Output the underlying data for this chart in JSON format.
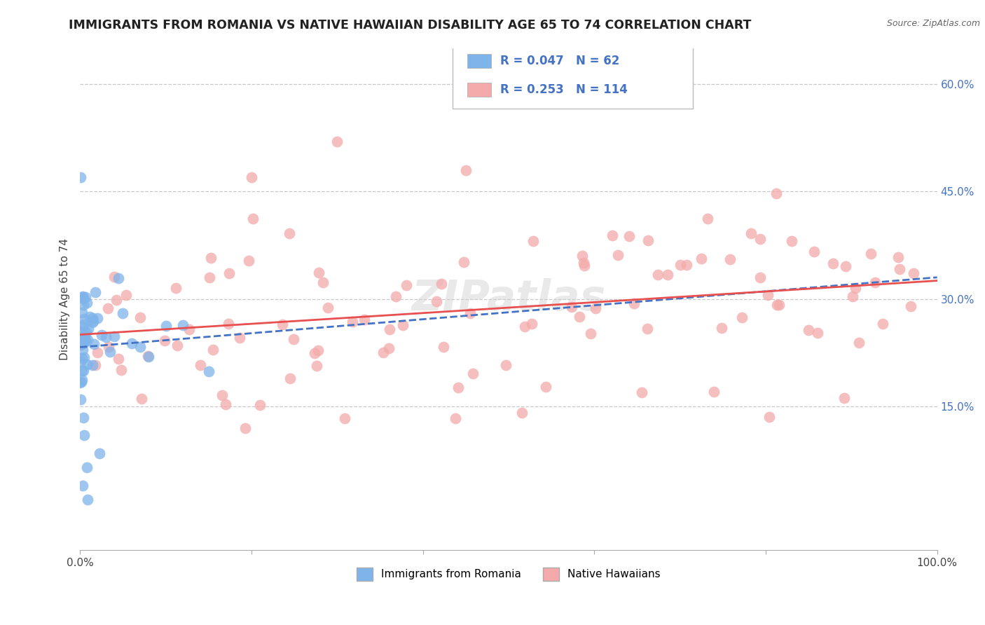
{
  "title": "IMMIGRANTS FROM ROMANIA VS NATIVE HAWAIIAN DISABILITY AGE 65 TO 74 CORRELATION CHART",
  "source": "Source: ZipAtlas.com",
  "ylabel": "Disability Age 65 to 74",
  "xlim": [
    0.0,
    100.0
  ],
  "ylim": [
    -5.0,
    65.0
  ],
  "xtick_positions": [
    0.0,
    100.0
  ],
  "xtick_labels": [
    "0.0%",
    "100.0%"
  ],
  "yticks": [
    15.0,
    30.0,
    45.0,
    60.0
  ],
  "ytick_labels": [
    "15.0%",
    "30.0%",
    "45.0%",
    "60.0%"
  ],
  "legend_labels": [
    "Immigrants from Romania",
    "Native Hawaiians"
  ],
  "romania_R": "0.047",
  "romania_N": "62",
  "native_R": "0.253",
  "native_N": "114",
  "color_romania": "#7EB4EA",
  "color_native": "#F4AAAA",
  "color_romania_line": "#4472C4",
  "color_native_line": "#E85050",
  "background_color": "#FFFFFF",
  "grid_color": "#C8C8C8"
}
